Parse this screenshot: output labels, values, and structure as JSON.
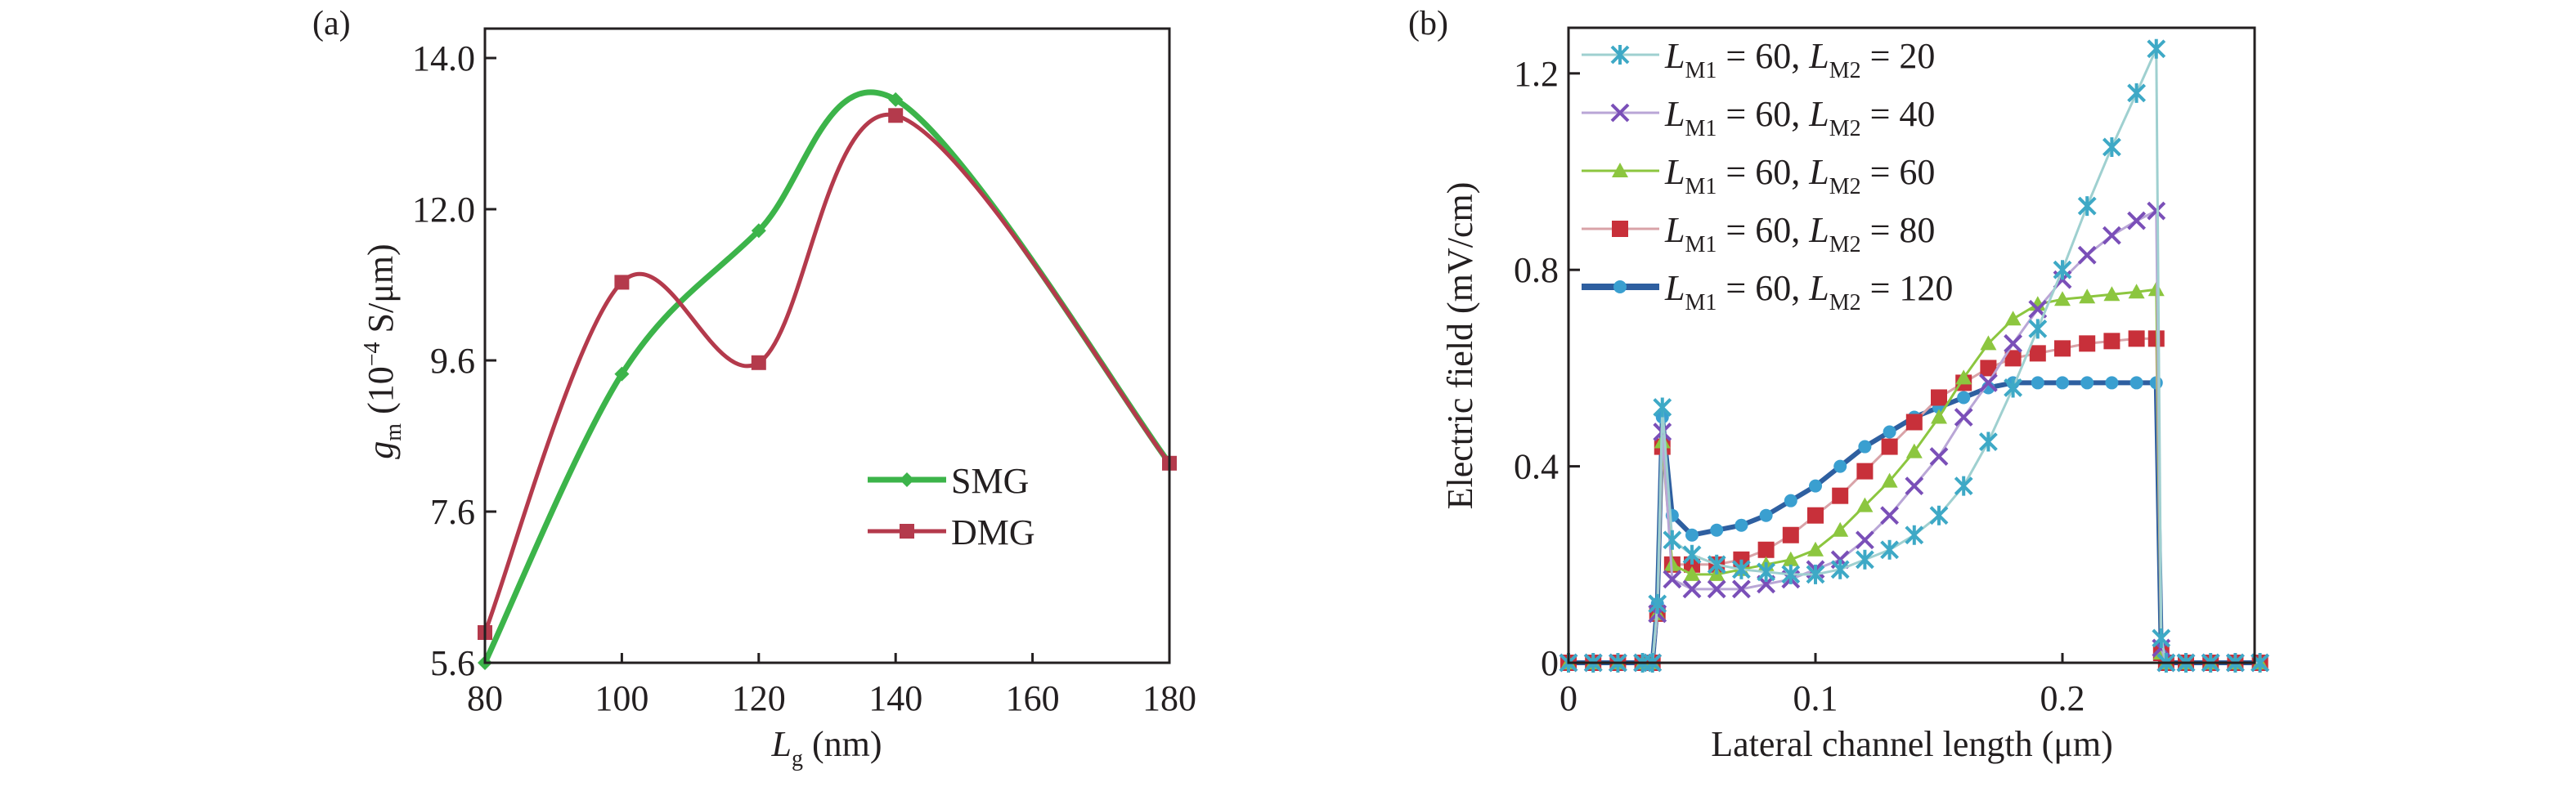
{
  "chart_data": [
    {
      "panel_label": "(a)",
      "type": "line",
      "xlabel_main": "L",
      "xlabel_sub": "g",
      "xlabel_unit": " (nm)",
      "ylabel_main": "g",
      "ylabel_sub": "m",
      "ylabel_unit": " (10",
      "ylabel_exp": "−4",
      "ylabel_unit2": " S/μm)",
      "xlim": [
        80,
        180
      ],
      "xticks": [
        80,
        100,
        120,
        140,
        160,
        180
      ],
      "yticks": [
        "5.6",
        "7.6",
        "9.6",
        "12.0",
        "14.0"
      ],
      "grid": false,
      "legend_position": "center-right",
      "series": [
        {
          "name": "SMG",
          "color": "#3cb44a",
          "marker": "diamond",
          "x": [
            80,
            100,
            120,
            140,
            180
          ],
          "y": [
            5.6,
            9.42,
            11.66,
            13.45,
            8.24
          ]
        },
        {
          "name": "DMG",
          "color": "#b43a4c",
          "marker": "square",
          "x": [
            80,
            100,
            120,
            140,
            180
          ],
          "y": [
            6.0,
            10.84,
            9.57,
            13.24,
            8.24
          ]
        }
      ]
    },
    {
      "panel_label": "(b)",
      "type": "line",
      "xlabel": "Lateral channel length (μm)",
      "ylabel": "Electric field (mV/cm)",
      "xlim": [
        0,
        0.28
      ],
      "ylim": [
        -0.015,
        1.29
      ],
      "xticks": [
        "0",
        "0.1",
        "0.2"
      ],
      "yticks": [
        "0",
        "0.4",
        "0.8",
        "1.2"
      ],
      "grid": false,
      "legend_position": "top-left",
      "series": [
        {
          "name": "LM1 = 60, LM2 = 20",
          "lm1": "60",
          "lm2": "20",
          "color": "#3ea9c6",
          "line_color": "#9fd0d0",
          "marker": "asterisk",
          "x": [
            0,
            0.01,
            0.02,
            0.03,
            0.034,
            0.036,
            0.038,
            0.042,
            0.05,
            0.06,
            0.07,
            0.08,
            0.09,
            0.1,
            0.11,
            0.12,
            0.13,
            0.14,
            0.15,
            0.16,
            0.17,
            0.18,
            0.19,
            0.2,
            0.21,
            0.22,
            0.23,
            0.238,
            0.24,
            0.242,
            0.25,
            0.26,
            0.27,
            0.28
          ],
          "y": [
            0,
            0,
            0,
            0,
            0,
            0.12,
            0.52,
            0.25,
            0.22,
            0.2,
            0.19,
            0.185,
            0.18,
            0.18,
            0.19,
            0.21,
            0.23,
            0.26,
            0.3,
            0.36,
            0.45,
            0.56,
            0.68,
            0.8,
            0.93,
            1.05,
            1.16,
            1.25,
            0.05,
            0,
            0,
            0,
            0,
            0
          ]
        },
        {
          "name": "LM1 = 60, LM2 = 40",
          "lm1": "60",
          "lm2": "40",
          "color": "#7a4fb8",
          "line_color": "#b9a6d6",
          "marker": "x",
          "x": [
            0,
            0.01,
            0.02,
            0.03,
            0.034,
            0.036,
            0.038,
            0.042,
            0.05,
            0.06,
            0.07,
            0.08,
            0.09,
            0.1,
            0.11,
            0.12,
            0.13,
            0.14,
            0.15,
            0.16,
            0.17,
            0.18,
            0.19,
            0.2,
            0.21,
            0.22,
            0.23,
            0.238,
            0.24,
            0.242,
            0.25,
            0.26,
            0.27,
            0.28
          ],
          "y": [
            0,
            0,
            0,
            0,
            0,
            0.1,
            0.47,
            0.17,
            0.15,
            0.15,
            0.15,
            0.16,
            0.17,
            0.19,
            0.21,
            0.25,
            0.3,
            0.36,
            0.42,
            0.5,
            0.57,
            0.65,
            0.72,
            0.78,
            0.83,
            0.87,
            0.9,
            0.92,
            0.03,
            0,
            0,
            0,
            0,
            0
          ]
        },
        {
          "name": "LM1 = 60, LM2 = 60",
          "lm1": "60",
          "lm2": "60",
          "color": "#8cc63f",
          "line_color": "#8cc63f",
          "marker": "triangle",
          "x": [
            0,
            0.01,
            0.02,
            0.03,
            0.034,
            0.036,
            0.038,
            0.042,
            0.05,
            0.06,
            0.07,
            0.08,
            0.09,
            0.1,
            0.11,
            0.12,
            0.13,
            0.14,
            0.15,
            0.16,
            0.17,
            0.18,
            0.19,
            0.2,
            0.21,
            0.22,
            0.23,
            0.238,
            0.24,
            0.242,
            0.25,
            0.26,
            0.27,
            0.28
          ],
          "y": [
            0,
            0,
            0,
            0,
            0,
            0.1,
            0.45,
            0.2,
            0.18,
            0.18,
            0.19,
            0.2,
            0.21,
            0.23,
            0.27,
            0.32,
            0.37,
            0.43,
            0.5,
            0.58,
            0.65,
            0.7,
            0.73,
            0.74,
            0.745,
            0.75,
            0.755,
            0.76,
            0.02,
            0,
            0,
            0,
            0,
            0
          ]
        },
        {
          "name": "LM1 = 60, LM2 = 80",
          "lm1": "60",
          "lm2": "80",
          "color": "#c8303a",
          "line_color": "#d9a3a8",
          "marker": "square",
          "x": [
            0,
            0.01,
            0.02,
            0.03,
            0.034,
            0.036,
            0.038,
            0.042,
            0.05,
            0.06,
            0.07,
            0.08,
            0.09,
            0.1,
            0.11,
            0.12,
            0.13,
            0.14,
            0.15,
            0.16,
            0.17,
            0.18,
            0.19,
            0.2,
            0.21,
            0.22,
            0.23,
            0.238,
            0.24,
            0.242,
            0.25,
            0.26,
            0.27,
            0.28
          ],
          "y": [
            0,
            0,
            0,
            0,
            0,
            0.1,
            0.44,
            0.2,
            0.2,
            0.2,
            0.21,
            0.23,
            0.26,
            0.3,
            0.34,
            0.39,
            0.44,
            0.49,
            0.54,
            0.57,
            0.6,
            0.62,
            0.63,
            0.64,
            0.65,
            0.655,
            0.66,
            0.66,
            0.02,
            0,
            0,
            0,
            0,
            0
          ]
        },
        {
          "name": "LM1 = 60, LM2 = 120",
          "lm1": "60",
          "lm2": "120",
          "color": "#3a9fd0",
          "line_color": "#2e5fa0",
          "marker": "dot",
          "x": [
            0,
            0.01,
            0.02,
            0.03,
            0.034,
            0.036,
            0.038,
            0.042,
            0.05,
            0.06,
            0.07,
            0.08,
            0.09,
            0.1,
            0.11,
            0.12,
            0.13,
            0.14,
            0.15,
            0.16,
            0.17,
            0.18,
            0.19,
            0.2,
            0.21,
            0.22,
            0.23,
            0.238,
            0.24,
            0.242,
            0.25,
            0.26,
            0.27,
            0.28
          ],
          "y": [
            0,
            0,
            0,
            0,
            0,
            0.12,
            0.5,
            0.3,
            0.26,
            0.27,
            0.28,
            0.3,
            0.33,
            0.36,
            0.4,
            0.44,
            0.47,
            0.5,
            0.52,
            0.54,
            0.56,
            0.57,
            0.57,
            0.57,
            0.57,
            0.57,
            0.57,
            0.57,
            0.02,
            0,
            0,
            0,
            0,
            0
          ]
        }
      ]
    }
  ]
}
